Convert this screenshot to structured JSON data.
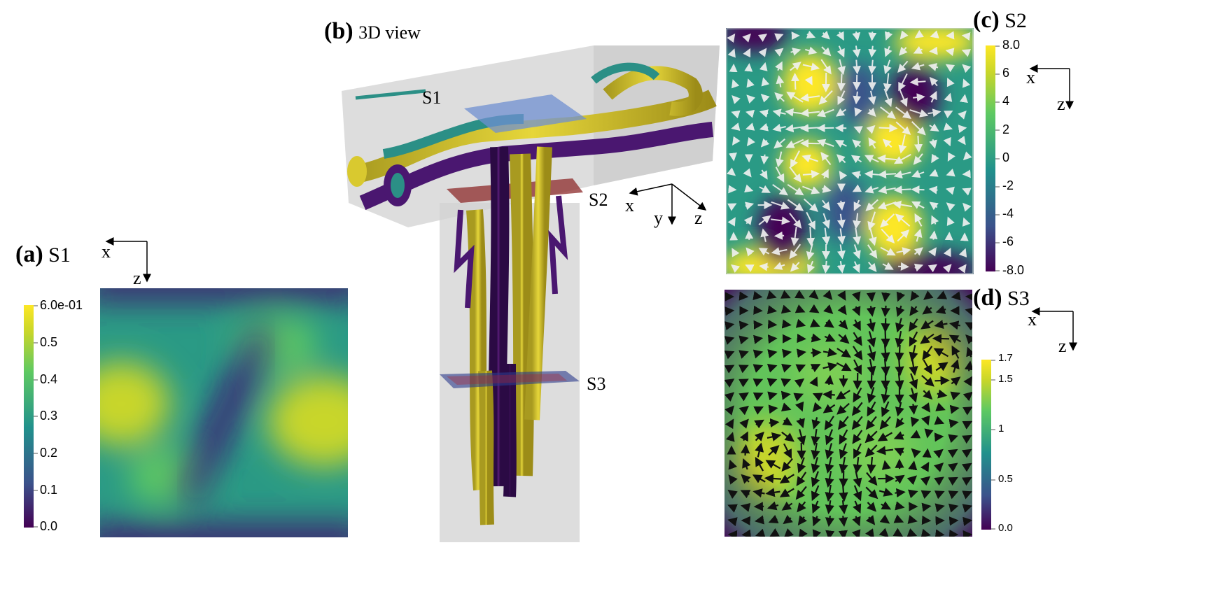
{
  "panels": {
    "a": {
      "letter": "(a)",
      "name": "S1",
      "axes": {
        "h": "x",
        "v": "z"
      },
      "colorbar": {
        "ticks": [
          "6.0e-01",
          "0.5",
          "0.4",
          "0.3",
          "0.2",
          "0.1",
          "0.0"
        ]
      }
    },
    "b": {
      "letter": "(b)",
      "name": "3D view",
      "slices": [
        "S1",
        "S2",
        "S3"
      ],
      "axes": {
        "x": "x",
        "y": "y",
        "z": "z"
      }
    },
    "c": {
      "letter": "(c)",
      "name": "S2",
      "axes": {
        "h": "x",
        "v": "z"
      },
      "colorbar": {
        "ticks": [
          "8.0",
          "6",
          "4",
          "2",
          "0",
          "-2",
          "-4",
          "-6",
          "-8.0"
        ]
      }
    },
    "d": {
      "letter": "(d)",
      "name": "S3",
      "axes": {
        "h": "x",
        "v": "z"
      },
      "colorbar": {
        "ticks": [
          "1.7",
          "1.5",
          "1",
          "0.5",
          "0.0"
        ]
      }
    }
  },
  "colormap": [
    "#440154",
    "#3b528b",
    "#21918c",
    "#5ec962",
    "#c8d62a",
    "#fde725"
  ]
}
